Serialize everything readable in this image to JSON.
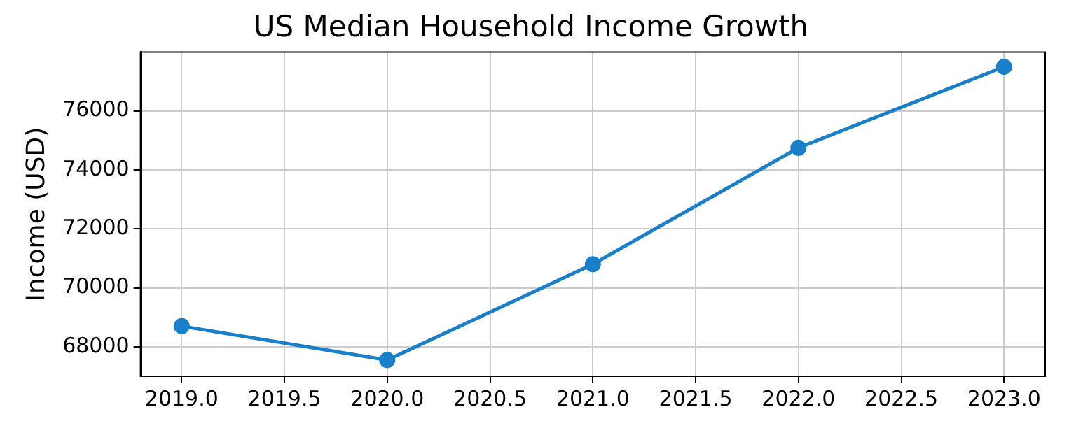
{
  "chart_data": {
    "type": "line",
    "title": "US Median Household Income Growth",
    "ylabel": "Income (USD)",
    "x": [
      2019,
      2020,
      2021,
      2022,
      2023
    ],
    "series": [
      {
        "color": "#1a7fc8",
        "values": [
          68700,
          67550,
          70800,
          74750,
          77500
        ]
      }
    ],
    "xlim": [
      2018.8,
      2023.2
    ],
    "xticks": [
      {
        "value": 2019,
        "label": "2019.0"
      },
      {
        "value": 2019.5,
        "label": "2019.5"
      },
      {
        "value": 2020,
        "label": "2020.0"
      },
      {
        "value": 2020.5,
        "label": "2020.5"
      },
      {
        "value": 2021,
        "label": "2021.0"
      },
      {
        "value": 2021.5,
        "label": "2021.5"
      },
      {
        "value": 2022,
        "label": "2022.0"
      },
      {
        "value": 2022.5,
        "label": "2022.5"
      },
      {
        "value": 2023,
        "label": "2023.0"
      }
    ],
    "ylim": [
      67000,
      78000
    ],
    "yticks": [
      68000,
      70000,
      72000,
      74000,
      76000
    ],
    "grid": true,
    "marker": "circle",
    "line_style": "solid",
    "legend": false
  }
}
